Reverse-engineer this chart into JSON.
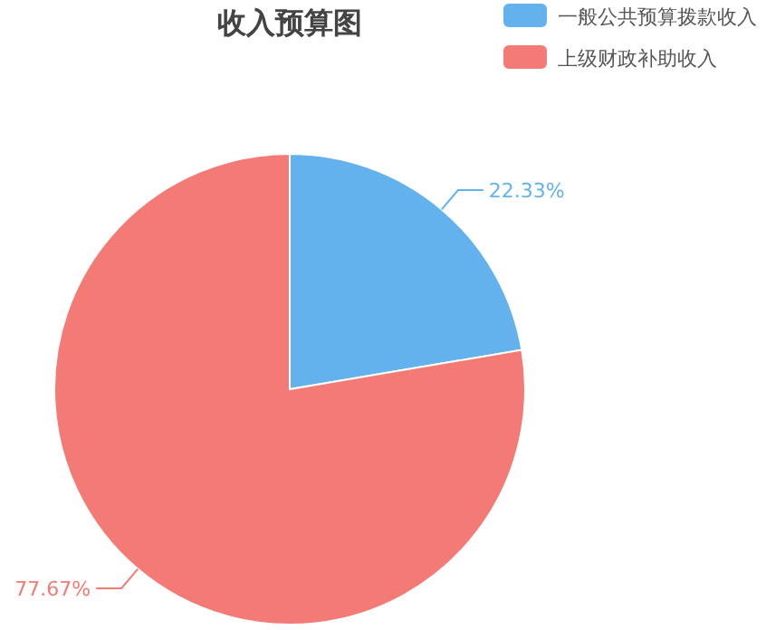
{
  "chart_data": {
    "type": "pie",
    "title": "收入预算图",
    "categories": [
      "一般公共预算拨款收入",
      "上级财政补助收入"
    ],
    "values": [
      22.33,
      77.67
    ],
    "colors": [
      "#63b2ee",
      "#f47b75"
    ],
    "value_labels": [
      "22.33%",
      "77.67%"
    ],
    "legend": "top right"
  }
}
